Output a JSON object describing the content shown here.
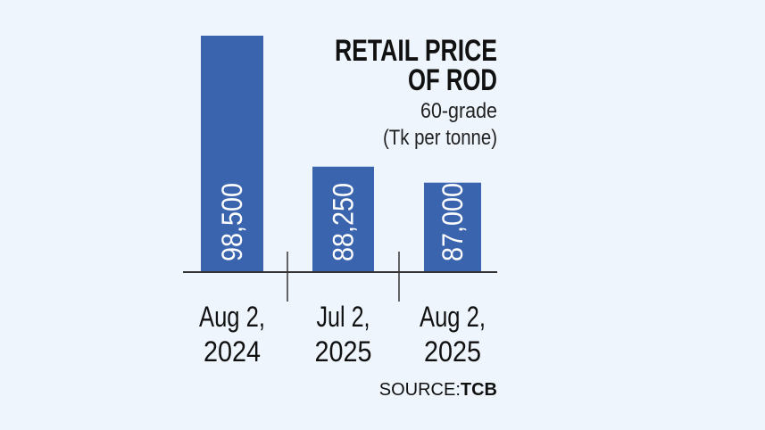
{
  "colors": {
    "bar": "#3a64ad",
    "background": "#eef5fc",
    "axis": "#333333",
    "text": "#111111"
  },
  "chart_data": {
    "type": "bar",
    "title": "RETAIL PRICE OF ROD",
    "title_lines": [
      "RETAIL PRICE",
      "OF ROD"
    ],
    "subtitle_lines": [
      "60-grade",
      "(Tk per tonne)"
    ],
    "categories": [
      "Aug 2, 2024",
      "Jul 2, 2025",
      "Aug 2, 2025"
    ],
    "category_lines": [
      [
        "Aug 2,",
        "2024"
      ],
      [
        "Jul 2,",
        "2025"
      ],
      [
        "Aug 2,",
        "2025"
      ]
    ],
    "values": [
      98500,
      88250,
      87000
    ],
    "value_labels": [
      "98,500",
      "88,250",
      "87,000"
    ],
    "ylim": [
      80000,
      100000
    ],
    "xlabel": "",
    "ylabel": "Tk per tonne",
    "grid": false,
    "source_prefix": "SOURCE:",
    "source_name": "TCB"
  }
}
